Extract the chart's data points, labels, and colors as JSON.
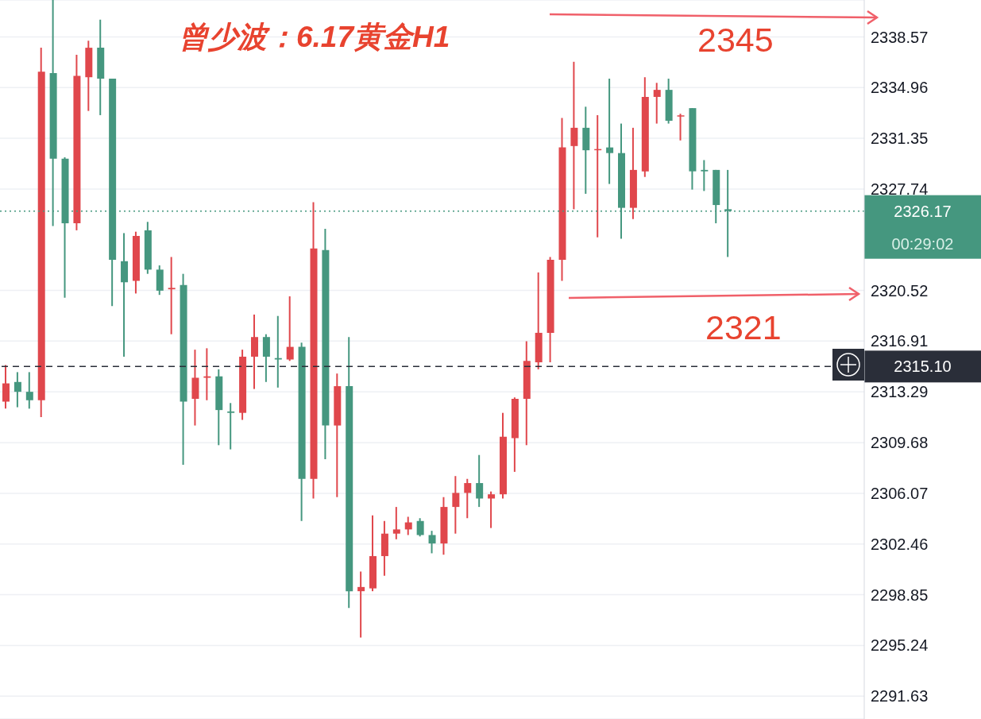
{
  "chart_data": {
    "type": "candlestick",
    "title": "曾少波：6.17黄金H1",
    "categories": [
      null,
      null,
      null,
      null,
      null,
      null,
      null,
      null,
      null,
      null,
      null,
      null,
      null,
      null,
      null,
      null,
      null,
      null,
      null,
      null,
      null,
      null,
      null,
      null,
      null,
      null,
      null,
      null,
      null,
      null,
      null,
      null,
      null,
      null,
      null,
      null,
      null,
      null,
      null,
      null,
      null,
      null,
      null,
      null,
      null,
      null,
      null,
      null,
      null,
      null,
      null,
      null,
      null,
      null,
      null,
      null,
      null,
      null,
      null,
      null,
      null,
      null,
      null,
      null,
      null,
      null,
      null,
      null,
      null,
      null,
      null,
      null,
      null
    ],
    "ohlc": [
      [
        2312.6,
        2315.2,
        2312.1,
        2313.9
      ],
      [
        2314.0,
        2314.7,
        2312.2,
        2313.3
      ],
      [
        2313.3,
        2314.7,
        2312.1,
        2312.7
      ],
      [
        2312.7,
        2337.8,
        2311.5,
        2336.1
      ],
      [
        2336.0,
        2341.2,
        2325.1,
        2329.9
      ],
      [
        2329.9,
        2330.0,
        2320.0,
        2325.3
      ],
      [
        2325.3,
        2337.3,
        2324.8,
        2335.8
      ],
      [
        2335.7,
        2338.3,
        2333.3,
        2337.8
      ],
      [
        2337.8,
        2339.8,
        2333.0,
        2335.6
      ],
      [
        2335.6,
        2335.6,
        2319.4,
        2322.7
      ],
      [
        2322.6,
        2324.6,
        2315.8,
        2321.1
      ],
      [
        2321.2,
        2324.7,
        2320.3,
        2324.4
      ],
      [
        2324.8,
        2325.4,
        2321.7,
        2322.0
      ],
      [
        2322.0,
        2322.3,
        2320.2,
        2320.5
      ],
      [
        2320.6,
        2322.9,
        2317.4,
        2320.7
      ],
      [
        2320.9,
        2321.7,
        2308.1,
        2312.6
      ],
      [
        2312.8,
        2316.3,
        2310.9,
        2314.3
      ],
      [
        2314.3,
        2316.4,
        2312.7,
        2314.4
      ],
      [
        2314.4,
        2314.9,
        2309.5,
        2312.0
      ],
      [
        2311.9,
        2312.5,
        2309.2,
        2311.8
      ],
      [
        2311.8,
        2316.3,
        2311.3,
        2315.8
      ],
      [
        2315.8,
        2318.8,
        2313.5,
        2317.2
      ],
      [
        2317.2,
        2317.4,
        2314.0,
        2315.8
      ],
      [
        2315.7,
        2318.7,
        2313.6,
        2315.6
      ],
      [
        2315.6,
        2320.1,
        2315.5,
        2316.5
      ],
      [
        2316.5,
        2316.8,
        2304.1,
        2307.1
      ],
      [
        2307.1,
        2326.8,
        2305.7,
        2323.5
      ],
      [
        2323.4,
        2324.9,
        2308.5,
        2310.9
      ],
      [
        2310.9,
        2314.6,
        2305.8,
        2313.7
      ],
      [
        2313.7,
        2317.2,
        2297.9,
        2299.1
      ],
      [
        2299.1,
        2300.5,
        2295.8,
        2299.4
      ],
      [
        2299.3,
        2304.5,
        2299.1,
        2301.6
      ],
      [
        2301.6,
        2304.1,
        2300.2,
        2303.2
      ],
      [
        2303.2,
        2305.1,
        2302.8,
        2303.5
      ],
      [
        2303.5,
        2304.4,
        2303.1,
        2304.0
      ],
      [
        2304.1,
        2304.3,
        2303.0,
        2303.1
      ],
      [
        2303.1,
        2303.4,
        2301.8,
        2302.5
      ],
      [
        2302.5,
        2305.8,
        2301.7,
        2305.1
      ],
      [
        2305.1,
        2307.3,
        2303.2,
        2306.1
      ],
      [
        2306.1,
        2307.1,
        2304.3,
        2306.8
      ],
      [
        2306.8,
        2308.8,
        2305.1,
        2305.7
      ],
      [
        2305.7,
        2306.2,
        2303.6,
        2306.0
      ],
      [
        2306.0,
        2311.8,
        2305.7,
        2310.1
      ],
      [
        2310.0,
        2312.9,
        2307.6,
        2312.8
      ],
      [
        2312.8,
        2316.9,
        2309.5,
        2315.5
      ],
      [
        2315.4,
        2321.8,
        2314.9,
        2317.5
      ],
      [
        2317.5,
        2322.9,
        2315.4,
        2322.7
      ],
      [
        2322.7,
        2332.8,
        2321.2,
        2330.7
      ],
      [
        2330.8,
        2336.8,
        2326.3,
        2332.1
      ],
      [
        2332.1,
        2333.6,
        2327.4,
        2330.5
      ],
      [
        2330.5,
        2333.0,
        2324.3,
        2330.5
      ],
      [
        2330.7,
        2335.6,
        2328.1,
        2330.3
      ],
      [
        2330.3,
        2332.4,
        2324.2,
        2326.4
      ],
      [
        2326.4,
        2332.1,
        2325.6,
        2329.1
      ],
      [
        2329.0,
        2335.7,
        2328.6,
        2334.3
      ],
      [
        2334.3,
        2335.3,
        2332.4,
        2334.8
      ],
      [
        2334.8,
        2335.6,
        2332.4,
        2332.6
      ],
      [
        2332.9,
        2333.1,
        2331.2,
        2332.9
      ],
      [
        2333.5,
        2333.5,
        2327.7,
        2329.0
      ],
      [
        2329.1,
        2329.8,
        2327.6,
        2329.0
      ],
      [
        2329.1,
        2329.1,
        2325.3,
        2326.6
      ],
      [
        2326.3,
        2329.1,
        2322.9,
        2326.17
      ],
      null,
      null,
      null,
      null,
      null,
      null,
      null,
      null,
      null,
      null,
      null
    ],
    "colors": [
      "#e0474c",
      "#45977f",
      "#45977f",
      "#e0474c",
      "#45977f",
      "#45977f",
      "#e0474c",
      "#e0474c",
      "#45977f",
      "#45977f",
      "#45977f",
      "#e0474c",
      "#45977f",
      "#45977f",
      "#e0474c",
      "#45977f",
      "#e0474c",
      "#e0474c",
      "#45977f",
      "#45977f",
      "#e0474c",
      "#e0474c",
      "#45977f",
      "#45977f",
      "#e0474c",
      "#45977f",
      "#e0474c",
      "#45977f",
      "#e0474c",
      "#45977f",
      "#e0474c",
      "#e0474c",
      "#e0474c",
      "#e0474c",
      "#e0474c",
      "#45977f",
      "#45977f",
      "#e0474c",
      "#e0474c",
      "#e0474c",
      "#45977f",
      "#e0474c",
      "#e0474c",
      "#e0474c",
      "#e0474c",
      "#e0474c",
      "#e0474c",
      "#e0474c",
      "#e0474c",
      "#45977f",
      "#e0474c",
      "#45977f",
      "#45977f",
      "#e0474c",
      "#e0474c",
      "#e0474c",
      "#45977f",
      "#e0474c",
      "#45977f",
      "#45977f",
      "#45977f",
      "#45977f",
      null,
      null,
      null,
      null,
      null,
      null,
      null,
      null,
      null,
      null,
      null
    ],
    "ylim": [
      2290.0,
      2341.2
    ],
    "yticks": [
      2338.57,
      2334.96,
      2331.35,
      2327.74,
      2320.52,
      2316.91,
      2313.29,
      2309.68,
      2306.07,
      2302.46,
      2298.85,
      2295.24,
      2291.63
    ],
    "ref_lines": [
      {
        "axis": "y",
        "value": 2326.17,
        "label": "2326.17",
        "color": "#45977f",
        "line_style": "dotted"
      },
      {
        "axis": "y",
        "value": 2315.1,
        "label": "2315.10",
        "color": "#2a2e39",
        "line_style": "dashed"
      }
    ],
    "annotations": [
      "2345",
      "2321",
      "00:29:02"
    ],
    "grid": "y",
    "tick_labels": "y",
    "legend": false
  }
}
